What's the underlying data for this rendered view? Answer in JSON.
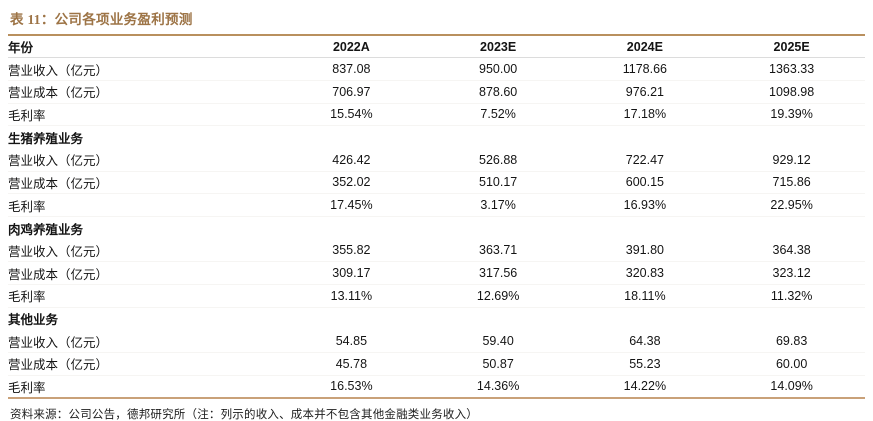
{
  "title": "表 11：公司各项业务盈利预测",
  "colors": {
    "accent_brown": "#9d7446",
    "rule_brown": "#b9905e",
    "header_rule_gray": "#dcdcdc",
    "text": "#141414"
  },
  "table": {
    "header": {
      "label": "年份",
      "years": [
        "2022A",
        "2023E",
        "2024E",
        "2025E"
      ]
    },
    "rows": [
      {
        "type": "data",
        "label": "营业收入（亿元）",
        "values": [
          "837.08",
          "950.00",
          "1178.66",
          "1363.33"
        ]
      },
      {
        "type": "data",
        "label": "营业成本（亿元）",
        "values": [
          "706.97",
          "878.60",
          "976.21",
          "1098.98"
        ]
      },
      {
        "type": "data",
        "label": "毛利率",
        "values": [
          "15.54%",
          "7.52%",
          "17.18%",
          "19.39%"
        ]
      },
      {
        "type": "section",
        "label": "生猪养殖业务",
        "values": [
          "",
          "",
          "",
          ""
        ]
      },
      {
        "type": "data",
        "label": "营业收入（亿元）",
        "values": [
          "426.42",
          "526.88",
          "722.47",
          "929.12"
        ]
      },
      {
        "type": "data",
        "label": "营业成本（亿元）",
        "values": [
          "352.02",
          "510.17",
          "600.15",
          "715.86"
        ]
      },
      {
        "type": "data",
        "label": "毛利率",
        "values": [
          "17.45%",
          "3.17%",
          "16.93%",
          "22.95%"
        ]
      },
      {
        "type": "section",
        "label": "肉鸡养殖业务",
        "values": [
          "",
          "",
          "",
          ""
        ]
      },
      {
        "type": "data",
        "label": "营业收入（亿元）",
        "values": [
          "355.82",
          "363.71",
          "391.80",
          "364.38"
        ]
      },
      {
        "type": "data",
        "label": "营业成本（亿元）",
        "values": [
          "309.17",
          "317.56",
          "320.83",
          "323.12"
        ]
      },
      {
        "type": "data",
        "label": "毛利率",
        "values": [
          "13.11%",
          "12.69%",
          "18.11%",
          "11.32%"
        ]
      },
      {
        "type": "section",
        "label": "其他业务",
        "values": [
          "",
          "",
          "",
          ""
        ]
      },
      {
        "type": "data",
        "label": "营业收入（亿元）",
        "values": [
          "54.85",
          "59.40",
          "64.38",
          "69.83"
        ]
      },
      {
        "type": "data",
        "label": "营业成本（亿元）",
        "values": [
          "45.78",
          "50.87",
          "55.23",
          "60.00"
        ]
      },
      {
        "type": "data",
        "label": "毛利率",
        "values": [
          "16.53%",
          "14.36%",
          "14.22%",
          "14.09%"
        ]
      }
    ]
  },
  "footer": "资料来源：公司公告，德邦研究所（注：列示的收入、成本并不包含其他金融类业务收入）"
}
